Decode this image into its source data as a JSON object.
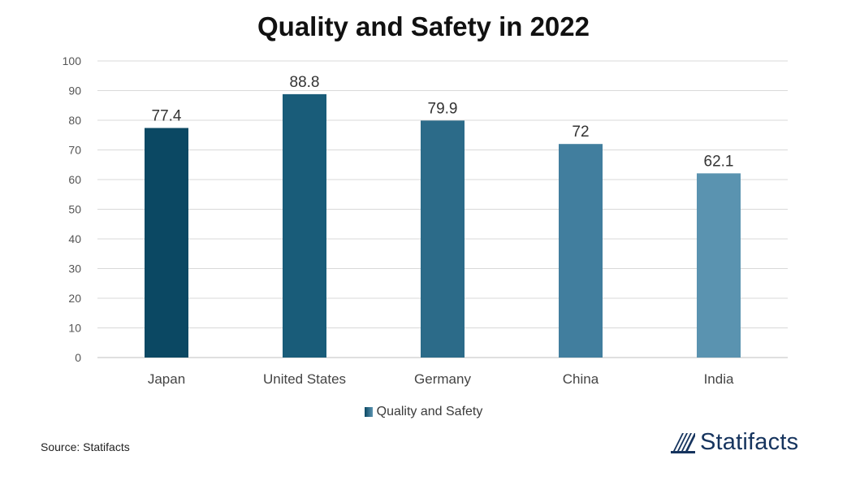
{
  "chart_data": {
    "type": "bar",
    "title": "Quality and Safety in 2022",
    "categories": [
      "Japan",
      "United States",
      "Germany",
      "China",
      "India"
    ],
    "series": [
      {
        "name": "Quality and Safety",
        "values": [
          77.4,
          88.8,
          79.9,
          72,
          62.1
        ]
      }
    ],
    "ylim": [
      0,
      100
    ],
    "yticks": [
      0,
      10,
      20,
      30,
      40,
      50,
      60,
      70,
      80,
      90,
      100
    ],
    "grid": true,
    "legend_position": "bottom",
    "bar_colors": [
      "#0b4863",
      "#195c79",
      "#2c6b89",
      "#417e9e",
      "#5a93b0"
    ]
  },
  "legend": {
    "label": "Quality and Safety"
  },
  "footer": {
    "source": "Source: Statifacts",
    "brand": "Statifacts"
  },
  "colors": {
    "grid": "#d9d9d9",
    "axis": "#bfbfbf",
    "text": "#444444",
    "brand": "#16345e"
  }
}
